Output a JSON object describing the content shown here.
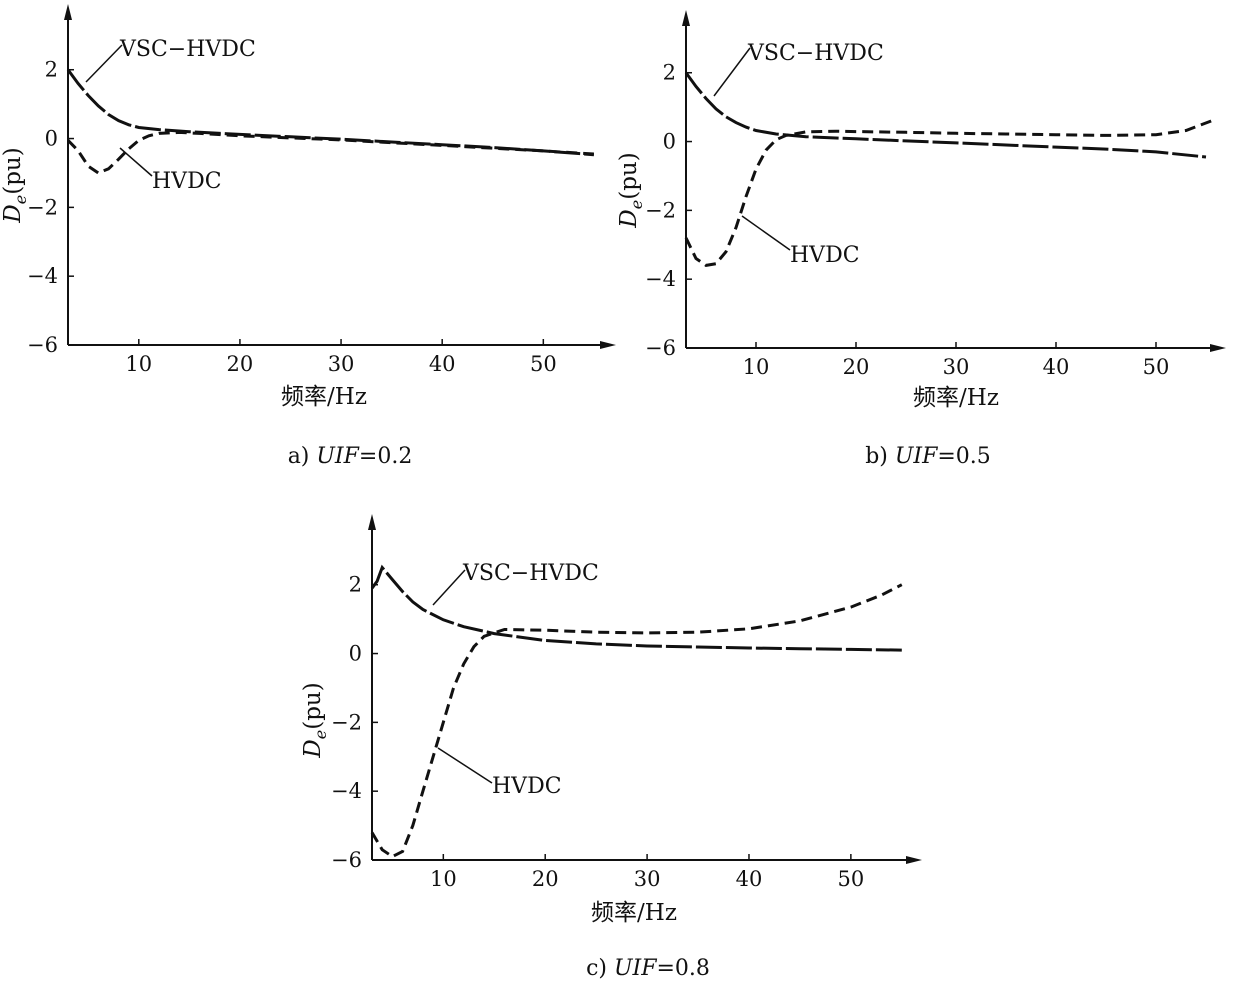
{
  "chart_data": [
    {
      "type": "line",
      "caption_prefix": "a) ",
      "caption_var": "UIF",
      "caption_suffix": "=0.2",
      "xlabel": "频率/Hz",
      "ylabel_main": "D",
      "ylabel_sub": "e",
      "ylabel_unit": "(pu)",
      "xticks": [
        10,
        20,
        30,
        40,
        50
      ],
      "yticks": [
        2,
        0,
        -2,
        -4,
        -6
      ],
      "ytick_labels": [
        "2",
        "0",
        "−2",
        "−4",
        "−6"
      ],
      "xlim": [
        3,
        56
      ],
      "ylim": [
        -6,
        3.3
      ],
      "series": [
        {
          "name": "VSC−HVDC",
          "points": [
            [
              3,
              2.0
            ],
            [
              4,
              1.6
            ],
            [
              5,
              1.25
            ],
            [
              6,
              0.95
            ],
            [
              7,
              0.7
            ],
            [
              8,
              0.52
            ],
            [
              9,
              0.4
            ],
            [
              10,
              0.32
            ],
            [
              12,
              0.26
            ],
            [
              15,
              0.2
            ],
            [
              20,
              0.12
            ],
            [
              25,
              0.05
            ],
            [
              30,
              -0.02
            ],
            [
              35,
              -0.1
            ],
            [
              40,
              -0.18
            ],
            [
              45,
              -0.26
            ],
            [
              50,
              -0.36
            ],
            [
              55,
              -0.47
            ]
          ]
        },
        {
          "name": "HVDC",
          "points": [
            [
              3,
              -0.05
            ],
            [
              4,
              -0.35
            ],
            [
              5,
              -0.8
            ],
            [
              6,
              -1.0
            ],
            [
              7,
              -0.88
            ],
            [
              8,
              -0.6
            ],
            [
              9,
              -0.3
            ],
            [
              10,
              -0.05
            ],
            [
              11,
              0.08
            ],
            [
              12,
              0.15
            ],
            [
              14,
              0.18
            ],
            [
              16,
              0.15
            ],
            [
              20,
              0.08
            ],
            [
              25,
              0.02
            ],
            [
              30,
              -0.04
            ],
            [
              35,
              -0.12
            ],
            [
              40,
              -0.2
            ],
            [
              45,
              -0.28
            ],
            [
              50,
              -0.36
            ],
            [
              55,
              -0.45
            ]
          ]
        }
      ]
    },
    {
      "type": "line",
      "caption_prefix": "b) ",
      "caption_var": "UIF",
      "caption_suffix": "=0.5",
      "xlabel": "频率/Hz",
      "ylabel_main": "D",
      "ylabel_sub": "e",
      "ylabel_unit": "(pu)",
      "xticks": [
        10,
        20,
        30,
        40,
        50
      ],
      "yticks": [
        2,
        0,
        -2,
        -4,
        -6
      ],
      "ytick_labels": [
        "2",
        "0",
        "−2",
        "−4",
        "−6"
      ],
      "xlim": [
        3,
        56
      ],
      "ylim": [
        -6,
        3.3
      ],
      "series": [
        {
          "name": "VSC−HVDC",
          "points": [
            [
              3,
              2.0
            ],
            [
              4,
              1.6
            ],
            [
              5,
              1.25
            ],
            [
              6,
              0.95
            ],
            [
              7,
              0.72
            ],
            [
              8,
              0.55
            ],
            [
              9,
              0.42
            ],
            [
              10,
              0.32
            ],
            [
              12,
              0.22
            ],
            [
              15,
              0.14
            ],
            [
              20,
              0.08
            ],
            [
              25,
              0.02
            ],
            [
              30,
              -0.04
            ],
            [
              35,
              -0.1
            ],
            [
              40,
              -0.16
            ],
            [
              45,
              -0.22
            ],
            [
              50,
              -0.3
            ],
            [
              55,
              -0.45
            ]
          ]
        },
        {
          "name": "HVDC",
          "points": [
            [
              3,
              -2.8
            ],
            [
              4,
              -3.4
            ],
            [
              5,
              -3.6
            ],
            [
              6,
              -3.55
            ],
            [
              7,
              -3.2
            ],
            [
              8,
              -2.5
            ],
            [
              9,
              -1.6
            ],
            [
              10,
              -0.8
            ],
            [
              11,
              -0.25
            ],
            [
              12,
              0.05
            ],
            [
              13,
              0.18
            ],
            [
              15,
              0.28
            ],
            [
              18,
              0.3
            ],
            [
              20,
              0.29
            ],
            [
              25,
              0.27
            ],
            [
              30,
              0.24
            ],
            [
              35,
              0.22
            ],
            [
              40,
              0.2
            ],
            [
              45,
              0.18
            ],
            [
              50,
              0.2
            ],
            [
              53,
              0.32
            ],
            [
              56,
              0.65
            ]
          ]
        }
      ]
    },
    {
      "type": "line",
      "caption_prefix": "c) ",
      "caption_var": "UIF",
      "caption_suffix": "=0.8",
      "xlabel": "频率/Hz",
      "ylabel_main": "D",
      "ylabel_sub": "e",
      "ylabel_unit": "(pu)",
      "xticks": [
        10,
        20,
        30,
        40,
        50
      ],
      "yticks": [
        2,
        0,
        -2,
        -4,
        -6
      ],
      "ytick_labels": [
        "2",
        "0",
        "−2",
        "−4",
        "−6"
      ],
      "xlim": [
        3,
        56
      ],
      "ylim": [
        -6,
        3.3
      ],
      "series": [
        {
          "name": "VSC−HVDC",
          "points": [
            [
              3,
              1.9
            ],
            [
              3.5,
              2.1
            ],
            [
              4,
              2.5
            ],
            [
              5,
              2.15
            ],
            [
              6,
              1.8
            ],
            [
              7,
              1.5
            ],
            [
              8,
              1.28
            ],
            [
              10,
              0.98
            ],
            [
              12,
              0.78
            ],
            [
              15,
              0.58
            ],
            [
              20,
              0.38
            ],
            [
              25,
              0.28
            ],
            [
              30,
              0.22
            ],
            [
              35,
              0.19
            ],
            [
              40,
              0.16
            ],
            [
              45,
              0.14
            ],
            [
              50,
              0.12
            ],
            [
              55,
              0.1
            ]
          ]
        },
        {
          "name": "HVDC",
          "points": [
            [
              3,
              -5.2
            ],
            [
              4,
              -5.7
            ],
            [
              5,
              -5.9
            ],
            [
              6,
              -5.75
            ],
            [
              7,
              -5.0
            ],
            [
              8,
              -4.0
            ],
            [
              9,
              -3.0
            ],
            [
              10,
              -2.0
            ],
            [
              11,
              -1.0
            ],
            [
              12,
              -0.3
            ],
            [
              13,
              0.2
            ],
            [
              14,
              0.5
            ],
            [
              16,
              0.7
            ],
            [
              20,
              0.68
            ],
            [
              25,
              0.62
            ],
            [
              30,
              0.6
            ],
            [
              35,
              0.62
            ],
            [
              40,
              0.72
            ],
            [
              45,
              0.95
            ],
            [
              50,
              1.35
            ],
            [
              53,
              1.7
            ],
            [
              55,
              2.0
            ]
          ]
        }
      ]
    }
  ]
}
